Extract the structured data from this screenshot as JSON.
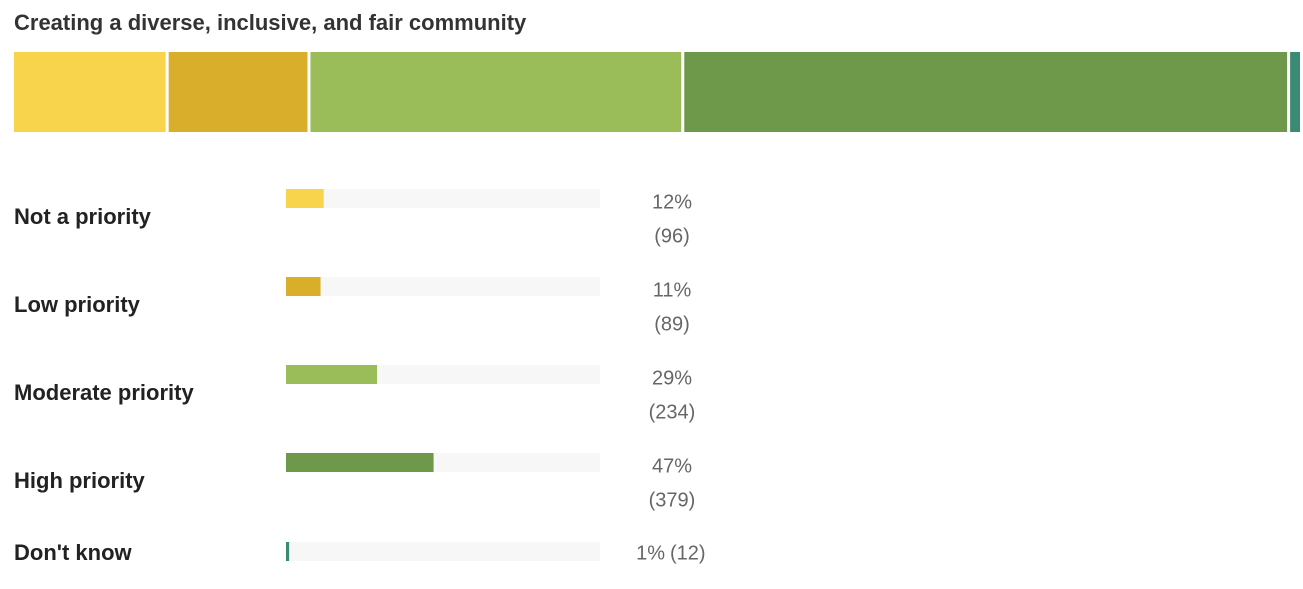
{
  "chart_data": {
    "type": "bar",
    "title": "Creating a diverse, inclusive, and fair community",
    "categories": [
      "Not a priority",
      "Low priority",
      "Moderate priority",
      "High priority",
      "Don't know"
    ],
    "colors": [
      "#f7d44c",
      "#d9ae2a",
      "#9abd5a",
      "#6e994b",
      "#3a8a74"
    ],
    "xlim": [
      0,
      100
    ],
    "series": [
      {
        "name": "Percent",
        "values": [
          12,
          11,
          29,
          47,
          1
        ],
        "value_labels": [
          "12%",
          "11%",
          "29%",
          "47%",
          "1%"
        ]
      },
      {
        "name": "Count",
        "values": [
          96,
          89,
          234,
          379,
          12
        ],
        "value_labels": [
          "(96)",
          "(89)",
          "(234)",
          "(379)",
          "(12)"
        ]
      }
    ]
  }
}
